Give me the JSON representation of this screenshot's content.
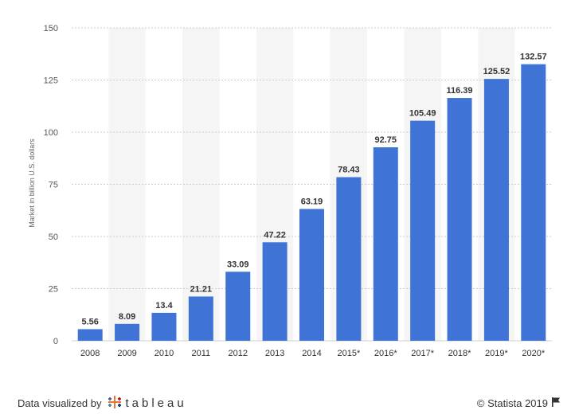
{
  "chart_data": {
    "type": "bar",
    "categories": [
      "2008",
      "2009",
      "2010",
      "2011",
      "2012",
      "2013",
      "2014",
      "2015*",
      "2016*",
      "2017*",
      "2018*",
      "2019*",
      "2020*"
    ],
    "values": [
      5.56,
      8.09,
      13.4,
      21.21,
      33.09,
      47.22,
      63.19,
      78.43,
      92.75,
      105.49,
      116.39,
      125.52,
      132.57
    ],
    "data_labels": [
      "5.56",
      "8.09",
      "13.4",
      "21.21",
      "33.09",
      "47.22",
      "63.19",
      "78.43",
      "92.75",
      "105.49",
      "116.39",
      "125.52",
      "132.57"
    ],
    "ylabel": "Market in billion U.S. dollars",
    "ylim": [
      0,
      150
    ],
    "yticks": [
      0,
      25,
      50,
      75,
      100,
      125,
      150
    ],
    "grid": "horizontal dashed",
    "bar_color": "#3f74d6",
    "alt_column_shade": "#f5f5f5"
  },
  "footer": {
    "left_text": "Data visualized by",
    "brand": "tableau",
    "logo_icon": "tableau-logo-icon",
    "copyright": "© Statista 2019",
    "flag_icon": "flag-icon"
  }
}
